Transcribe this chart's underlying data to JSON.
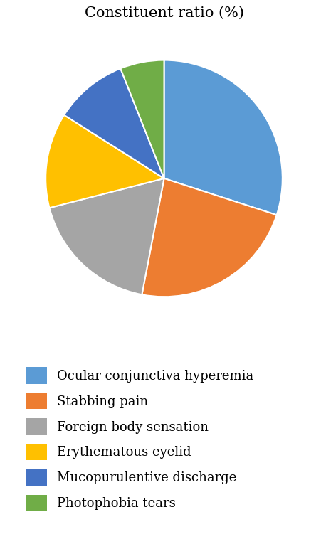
{
  "title": "Constituent ratio (%)",
  "labels": [
    "Ocular conjunctiva hyperemia",
    "Stabbing pain",
    "Foreign body sensation",
    "Erythematous eyelid",
    "Mucopurulentive discharge",
    "Photophobia tears"
  ],
  "sizes": [
    30.0,
    23.0,
    18.0,
    13.0,
    10.0,
    6.0
  ],
  "colors": [
    "#5B9BD5",
    "#ED7D31",
    "#A5A5A5",
    "#FFC000",
    "#4472C4",
    "#70AD47"
  ],
  "startangle": 90,
  "title_fontsize": 15,
  "legend_fontsize": 13,
  "background_color": "#FFFFFF"
}
